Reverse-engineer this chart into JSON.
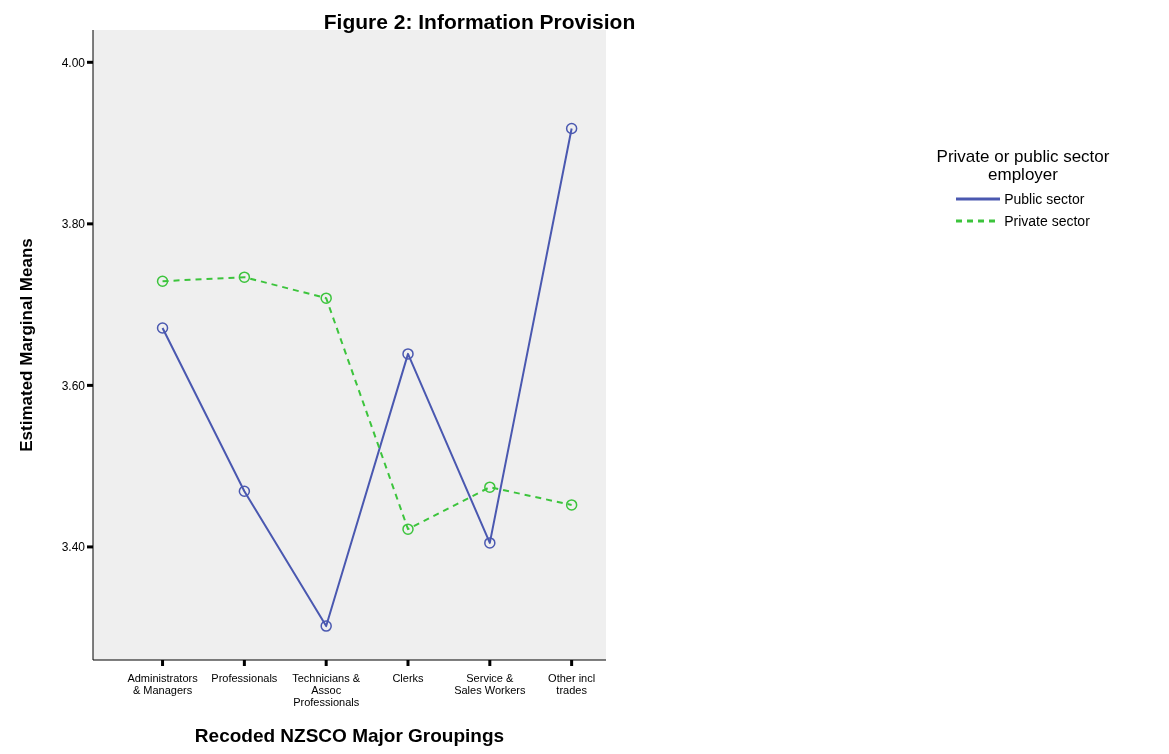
{
  "chart_data": {
    "type": "line",
    "title": "Figure 2: Information Provision",
    "xlabel": "Recoded NZSCO Major Groupings",
    "ylabel": "Estimated Marginal Means",
    "legend_title": "Private or public sector employer",
    "categories": [
      "Administrators & Managers",
      "Professionals",
      "Technicians & Assoc Professionals",
      "Clerks",
      "Service & Sales Workers",
      "Other incl trades"
    ],
    "series": [
      {
        "name": "Public sector",
        "color": "#4a58b0",
        "line_style": "solid",
        "values": [
          3.671,
          3.469,
          3.302,
          3.639,
          3.405,
          3.918
        ]
      },
      {
        "name": "Private sector",
        "color": "#3cc43c",
        "line_style": "dashed",
        "values": [
          3.729,
          3.734,
          3.708,
          3.422,
          3.474,
          3.452
        ]
      }
    ],
    "ylim": [
      3.26,
      4.04
    ],
    "yticks": [
      {
        "value": 3.4,
        "label": "3.40"
      },
      {
        "value": 3.6,
        "label": "3.60"
      },
      {
        "value": 3.8,
        "label": "3.80"
      },
      {
        "value": 4,
        "label": "4.00"
      }
    ],
    "grid": false,
    "legend": "right",
    "marker": "circle"
  }
}
